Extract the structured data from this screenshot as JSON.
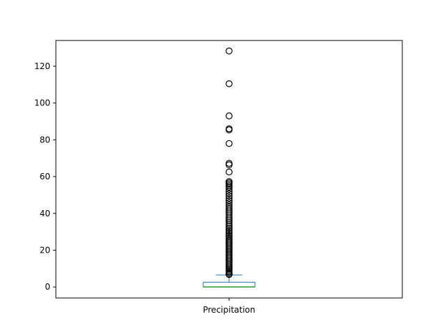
{
  "chart_data": {
    "type": "box",
    "categories": [
      "Precipitation"
    ],
    "ylim": [
      -6,
      134
    ],
    "yticks": [
      0,
      20,
      40,
      60,
      80,
      100,
      120
    ],
    "grid": false,
    "legend": "none",
    "box": {
      "q1": 0.0,
      "median": 0.0,
      "q3": 2.6,
      "whisker_low": 0.0,
      "whisker_high": 6.5
    },
    "outliers": [
      128.3,
      110.5,
      93.0,
      86.0,
      85.4,
      78.0,
      67.2,
      66.4,
      62.5,
      57.3,
      56.6,
      55.9,
      55.1,
      54.3,
      53.2,
      52.0,
      50.8,
      49.5,
      48.2,
      47.0,
      45.8,
      44.6,
      43.5,
      42.4,
      41.3,
      40.2,
      39.1,
      38.0,
      37.0,
      36.0,
      35.0,
      34.0,
      33.0,
      32.0,
      31.1,
      30.2,
      29.3,
      28.4,
      27.5,
      26.6,
      25.8,
      25.0,
      24.2,
      23.4,
      22.6,
      21.8,
      21.0,
      20.2,
      19.4,
      18.6,
      17.8,
      17.0,
      16.2,
      15.4,
      14.6,
      13.8,
      13.0,
      12.2,
      11.4,
      10.6,
      9.9,
      9.2,
      8.5,
      7.8,
      7.1,
      6.8
    ],
    "colors": {
      "box": "#1f77b4",
      "median": "#2ca02c",
      "outlier_edge": "#000000",
      "axes": "#000000"
    }
  }
}
